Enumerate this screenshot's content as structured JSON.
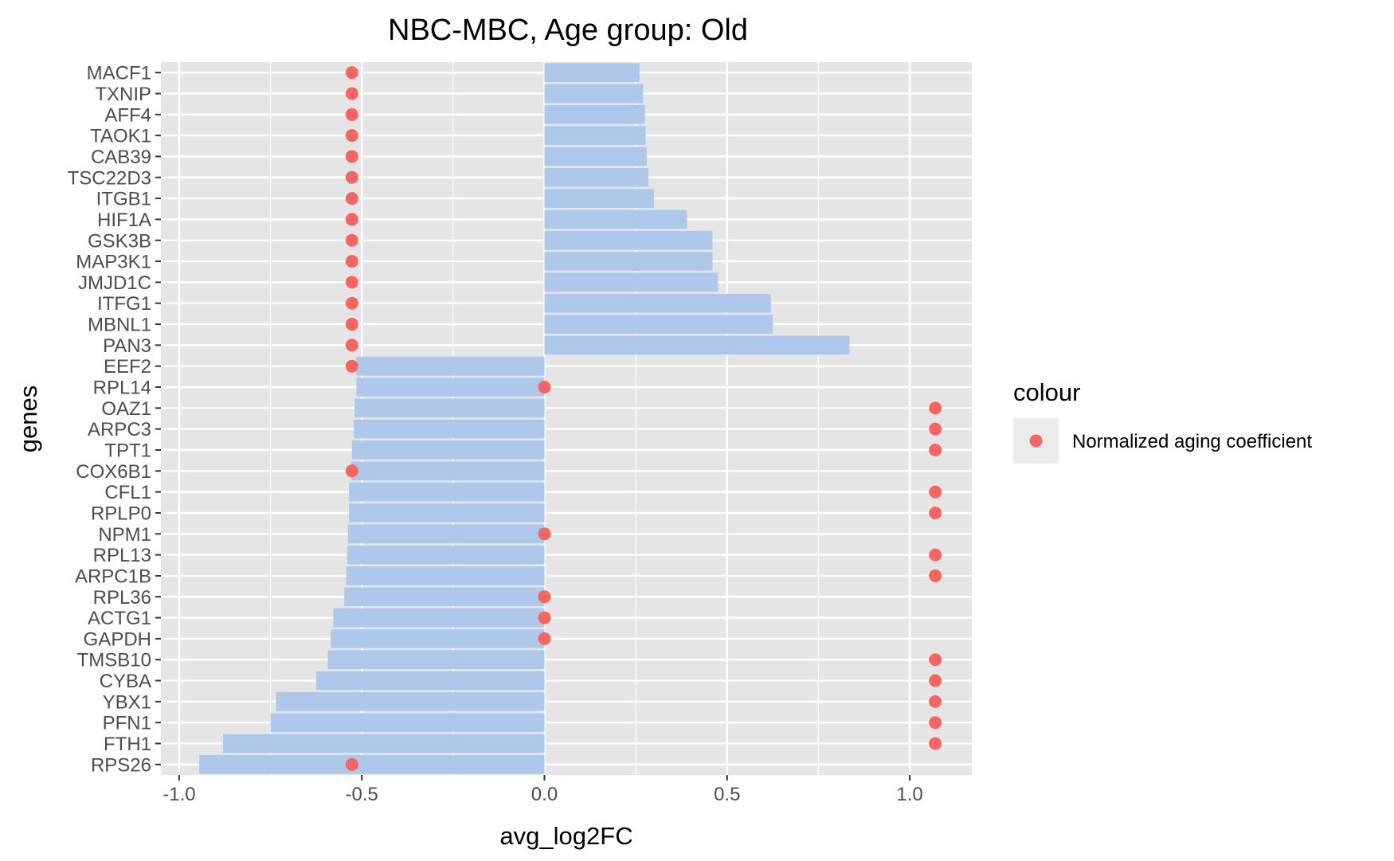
{
  "chart_data": {
    "type": "bar",
    "title": "NBC-MBC, Age group: Old",
    "xlabel": "avg_log2FC",
    "ylabel": "genes",
    "xlim": [
      -1.05,
      1.17
    ],
    "x_ticks": [
      -1.0,
      -0.5,
      0.0,
      0.5,
      1.0
    ],
    "x_tick_labels": [
      "-1.0",
      "-0.5",
      "0.0",
      "0.5",
      "1.0"
    ],
    "grid": true,
    "orientation": "horizontal",
    "categories": [
      "MACF1",
      "TXNIP",
      "AFF4",
      "TAOK1",
      "CAB39",
      "TSC22D3",
      "ITGB1",
      "HIF1A",
      "GSK3B",
      "MAP3K1",
      "JMJD1C",
      "ITFG1",
      "MBNL1",
      "PAN3",
      "EEF2",
      "RPL14",
      "OAZ1",
      "ARPC3",
      "TPT1",
      "COX6B1",
      "CFL1",
      "RPLP0",
      "NPM1",
      "RPL13",
      "ARPC1B",
      "RPL36",
      "ACTG1",
      "GAPDH",
      "TMSB10",
      "CYBA",
      "YBX1",
      "PFN1",
      "FTH1",
      "RPS26"
    ],
    "series": [
      {
        "kind": "bar",
        "values": [
          0.26,
          0.27,
          0.275,
          0.277,
          0.28,
          0.285,
          0.3,
          0.39,
          0.46,
          0.46,
          0.475,
          0.62,
          0.625,
          0.835,
          -0.515,
          -0.515,
          -0.52,
          -0.522,
          -0.527,
          -0.53,
          -0.535,
          -0.535,
          -0.538,
          -0.54,
          -0.543,
          -0.548,
          -0.578,
          -0.585,
          -0.593,
          -0.625,
          -0.735,
          -0.75,
          -0.88,
          -0.945
        ],
        "color": "#aec8ec"
      },
      {
        "kind": "point",
        "name": "Normalized aging coefficient",
        "values": [
          -0.527,
          -0.527,
          -0.527,
          -0.527,
          -0.527,
          -0.527,
          -0.527,
          -0.527,
          -0.527,
          -0.527,
          -0.527,
          -0.527,
          -0.527,
          -0.527,
          -0.527,
          0.0,
          1.07,
          1.07,
          1.07,
          -0.527,
          1.07,
          1.07,
          0.0,
          1.07,
          1.07,
          0.0,
          0.0,
          0.0,
          1.07,
          1.07,
          1.07,
          1.07,
          1.07,
          -0.527
        ],
        "color": "#f8645f"
      }
    ],
    "legend": {
      "title": "colour",
      "position": "right",
      "entries": [
        "Normalized aging coefficient"
      ]
    },
    "colors": {
      "panel_bg": "#e5e5e5",
      "gridline": "#ffffff",
      "bar": "#aec8ec",
      "point": "#f8645f",
      "legend_key_bg": "#ebebeb"
    }
  }
}
